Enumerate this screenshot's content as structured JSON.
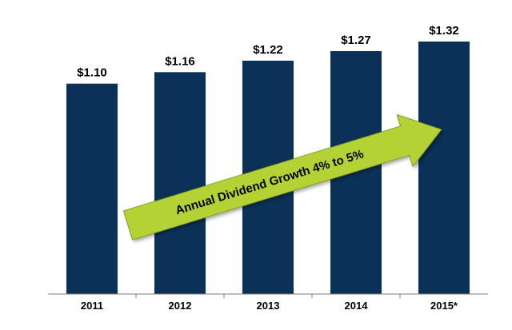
{
  "chart_data": {
    "type": "bar",
    "categories": [
      "2011",
      "2012",
      "2013",
      "2014",
      "2015*"
    ],
    "values": [
      1.1,
      1.16,
      1.22,
      1.27,
      1.32
    ],
    "value_labels": [
      "$1.10",
      "$1.16",
      "$1.22",
      "$1.27",
      "$1.32"
    ],
    "title": "",
    "xlabel": "",
    "ylabel": "",
    "ylim": [
      0,
      1.32
    ],
    "grid": false,
    "bar_color": "#0b3158",
    "annotation": {
      "text": "Annual Dividend Growth 4% to 5%",
      "shape": "arrow",
      "color": "#b5d235"
    }
  }
}
